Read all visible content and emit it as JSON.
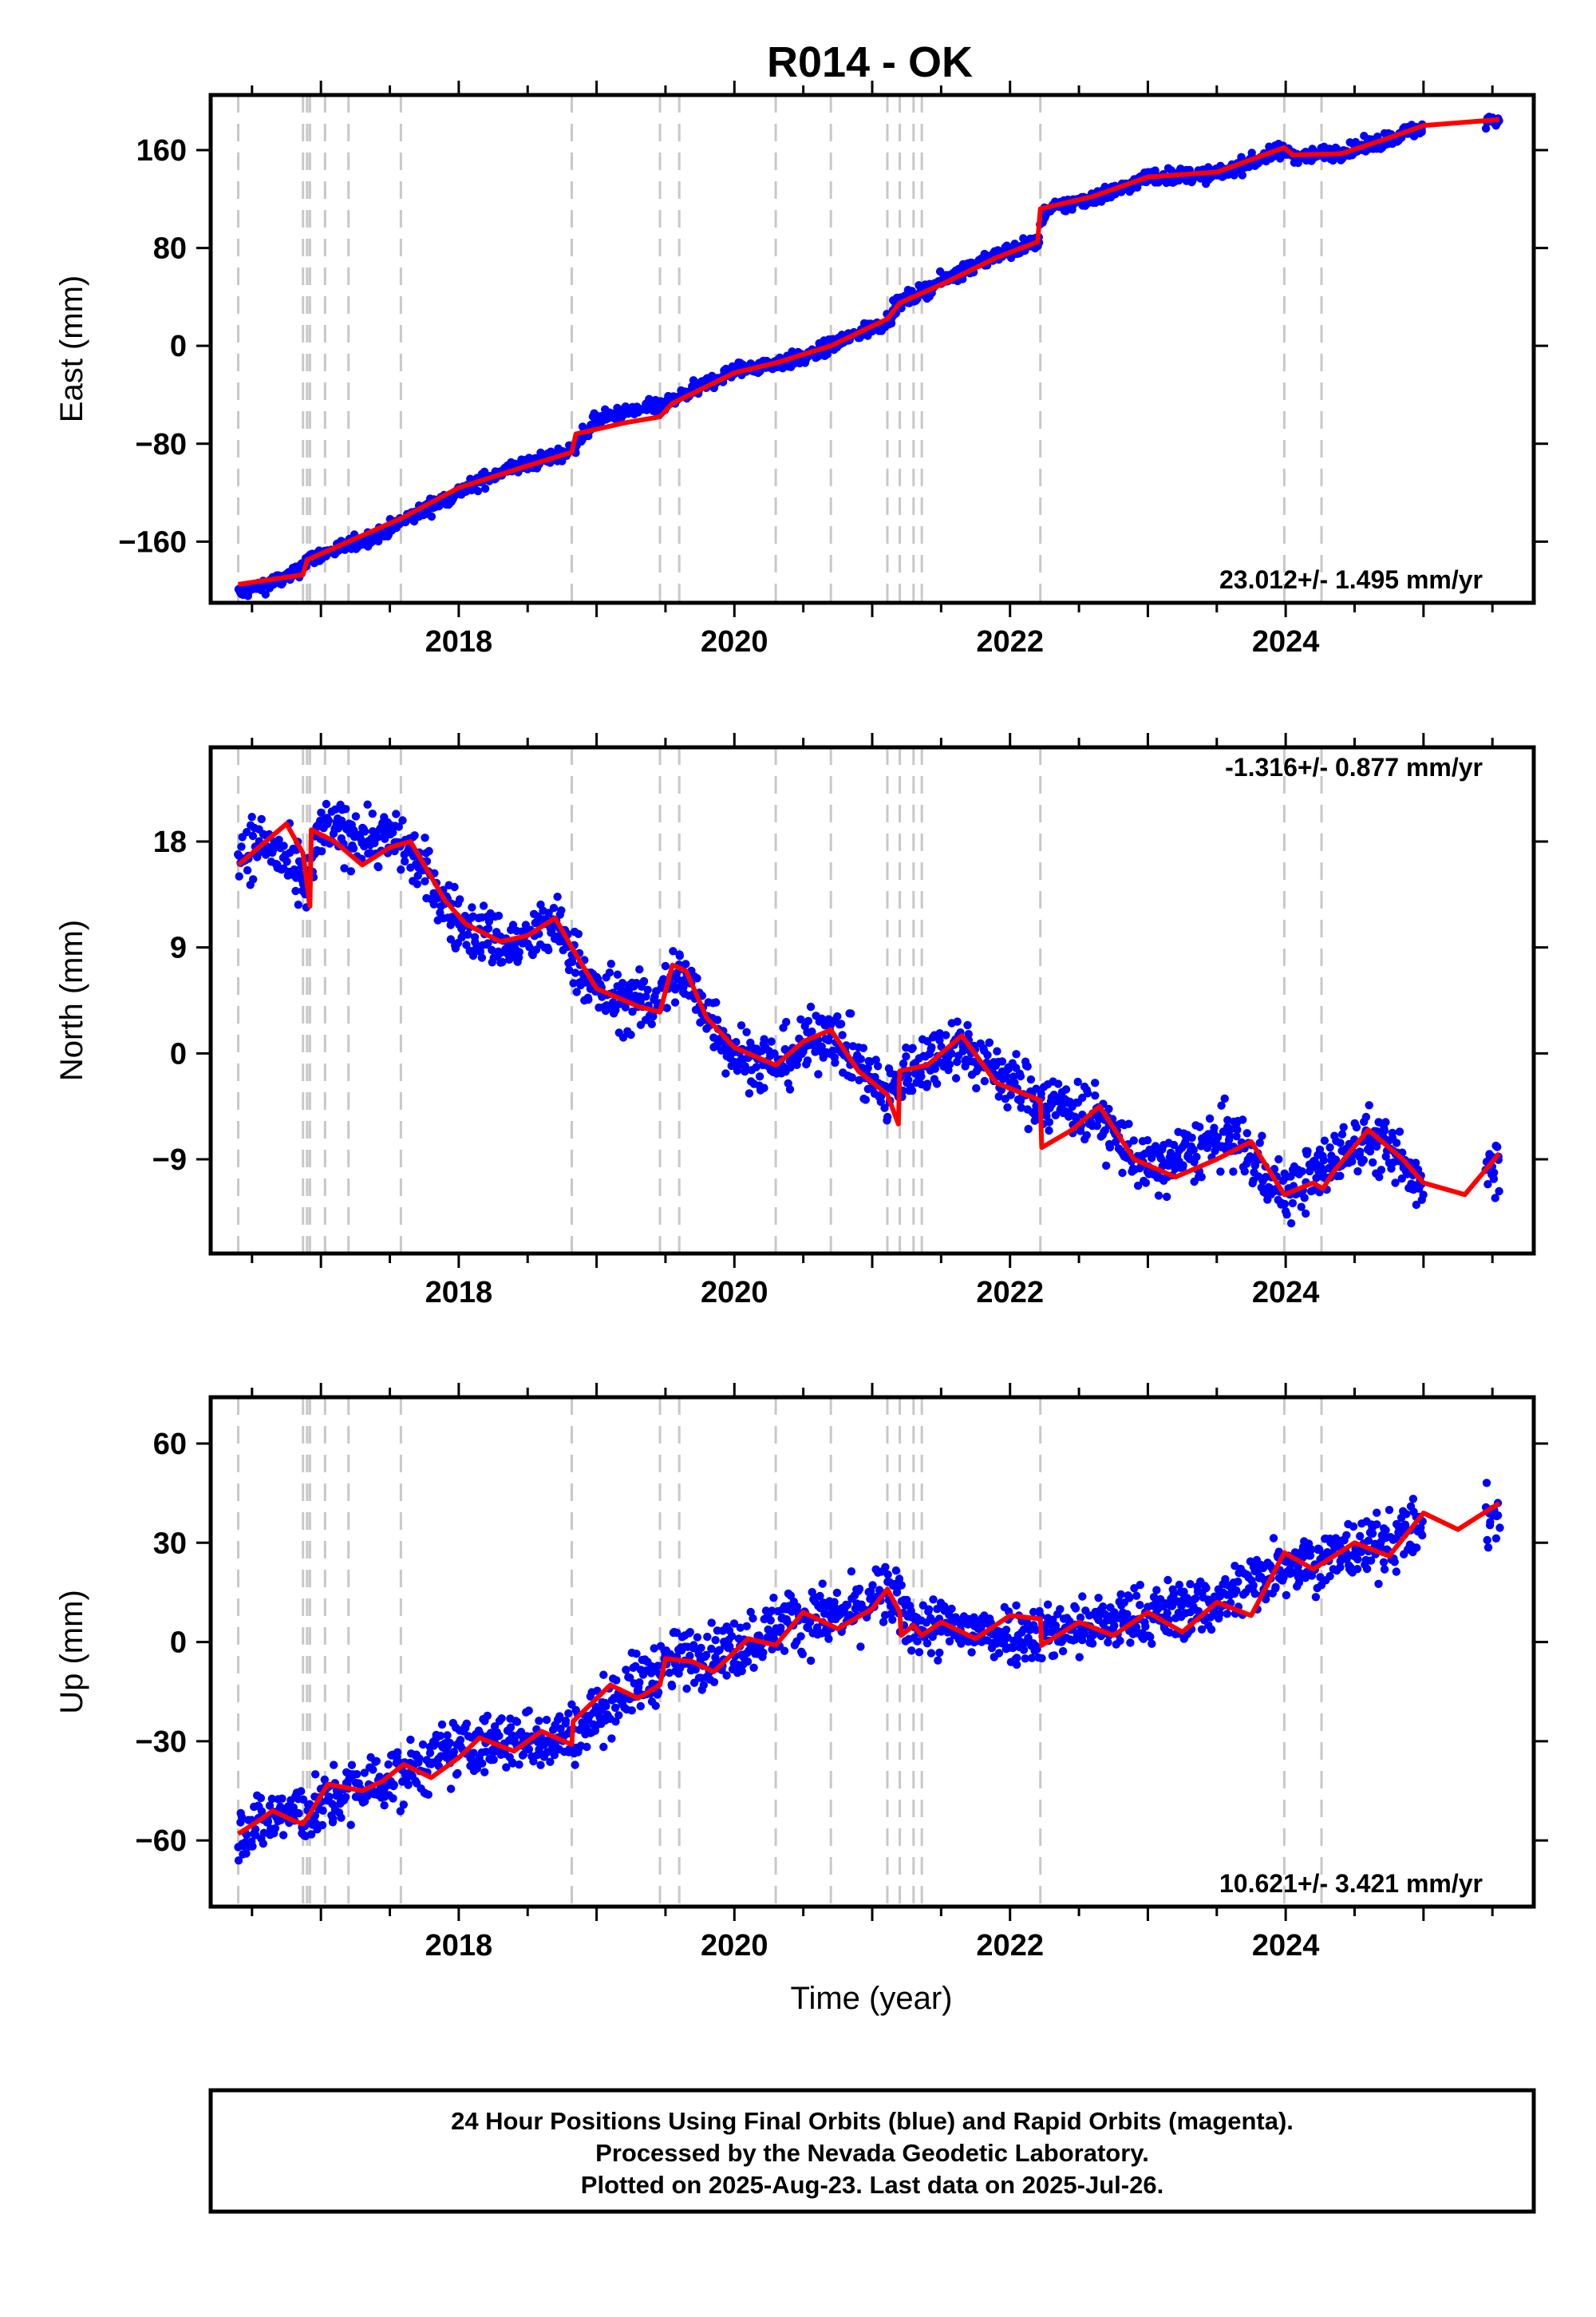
{
  "title": "R014 - OK",
  "xlabel": "Time (year)",
  "footer": {
    "line1": "24 Hour Positions Using Final Orbits (blue) and Rapid Orbits (magenta).",
    "line2": "Processed by the Nevada Geodetic Laboratory.",
    "line3": "Plotted on 2025-Aug-23. Last data on 2025-Jul-26."
  },
  "colors": {
    "data": "#0000ff",
    "model": "#ff0000",
    "event_lines": "#c8c8c8",
    "frame": "#000000"
  },
  "chart_data": [
    {
      "type": "scatter",
      "component": "east",
      "ylabel": "East (mm)",
      "xlim": [
        2016.2,
        2025.8
      ],
      "ylim": [
        -210,
        205
      ],
      "yticks": [
        -160,
        -80,
        0,
        80,
        160
      ],
      "xticks": [
        2018,
        2020,
        2022,
        2024
      ],
      "rate_text": "23.012+/- 1.495 mm/yr",
      "rate_position": "bottom-right",
      "event_lines": [
        2016.4,
        2016.87,
        2016.9,
        2016.92,
        2017.03,
        2017.2,
        2017.58,
        2018.82,
        2019.46,
        2019.6,
        2020.3,
        2020.7,
        2021.11,
        2021.2,
        2021.3,
        2021.36,
        2022.22,
        2023.99,
        2024.26
      ],
      "series": [
        {
          "name": "data",
          "style": "dots",
          "approx_points": [
            [
              2016.4,
              -202
            ],
            [
              2016.8,
              -188
            ],
            [
              2016.9,
              -175
            ],
            [
              2017.4,
              -155
            ],
            [
              2017.9,
              -125
            ],
            [
              2018.3,
              -103
            ],
            [
              2018.8,
              -87
            ],
            [
              2019.0,
              -60
            ],
            [
              2019.5,
              -48
            ],
            [
              2020.0,
              -20
            ],
            [
              2020.5,
              -10
            ],
            [
              2021.1,
              20
            ],
            [
              2021.2,
              35
            ],
            [
              2021.8,
              70
            ],
            [
              2022.2,
              85
            ],
            [
              2022.25,
              110
            ],
            [
              2022.8,
              128
            ],
            [
              2023.0,
              138
            ],
            [
              2023.5,
              140
            ],
            [
              2023.98,
              160
            ],
            [
              2024.1,
              155
            ],
            [
              2024.5,
              160
            ],
            [
              2024.9,
              175
            ],
            [
              2025.2,
              180
            ],
            [
              2025.55,
              185
            ]
          ],
          "scatter": 6
        },
        {
          "name": "model",
          "style": "line",
          "points": [
            [
              2016.4,
              -195
            ],
            [
              2016.87,
              -187
            ],
            [
              2016.9,
              -175
            ],
            [
              2017.6,
              -140
            ],
            [
              2018.0,
              -116
            ],
            [
              2018.5,
              -98
            ],
            [
              2018.82,
              -87
            ],
            [
              2018.85,
              -72
            ],
            [
              2019.2,
              -63
            ],
            [
              2019.46,
              -58
            ],
            [
              2019.55,
              -47
            ],
            [
              2020.0,
              -22
            ],
            [
              2020.3,
              -14
            ],
            [
              2020.7,
              0
            ],
            [
              2021.11,
              22
            ],
            [
              2021.2,
              35
            ],
            [
              2021.5,
              50
            ],
            [
              2021.9,
              72
            ],
            [
              2022.2,
              85
            ],
            [
              2022.22,
              112
            ],
            [
              2022.6,
              122
            ],
            [
              2022.8,
              130
            ],
            [
              2023.0,
              138
            ],
            [
              2023.5,
              142
            ],
            [
              2023.99,
              162
            ],
            [
              2024.05,
              156
            ],
            [
              2024.4,
              157
            ],
            [
              2024.7,
              168
            ],
            [
              2025.0,
              180
            ],
            [
              2025.55,
              185
            ]
          ]
        }
      ]
    },
    {
      "type": "scatter",
      "component": "north",
      "ylabel": "North (mm)",
      "xlim": [
        2016.2,
        2025.8
      ],
      "ylim": [
        -17,
        26
      ],
      "yticks": [
        -9,
        0,
        9,
        18
      ],
      "xticks": [
        2018,
        2020,
        2022,
        2024
      ],
      "rate_text": "-1.316+/- 0.877 mm/yr",
      "rate_position": "top-right",
      "event_lines": [
        2016.4,
        2016.87,
        2016.9,
        2016.92,
        2017.03,
        2017.2,
        2017.58,
        2018.82,
        2019.46,
        2019.6,
        2020.3,
        2020.7,
        2021.11,
        2021.2,
        2021.3,
        2021.36,
        2022.22,
        2023.99,
        2024.26
      ],
      "series": [
        {
          "name": "data",
          "style": "dots",
          "approx_points": [
            [
              2016.4,
              17
            ],
            [
              2016.6,
              18
            ],
            [
              2016.9,
              14
            ],
            [
              2017.0,
              19
            ],
            [
              2017.6,
              18
            ],
            [
              2018.0,
              11
            ],
            [
              2018.4,
              9
            ],
            [
              2018.7,
              11
            ],
            [
              2019.0,
              5
            ],
            [
              2019.4,
              4
            ],
            [
              2019.6,
              7
            ],
            [
              2020.0,
              0
            ],
            [
              2020.3,
              -1
            ],
            [
              2020.7,
              2
            ],
            [
              2021.11,
              -4
            ],
            [
              2021.2,
              -2
            ],
            [
              2021.6,
              1
            ],
            [
              2022.2,
              -4
            ],
            [
              2022.6,
              -5
            ],
            [
              2023.0,
              -10
            ],
            [
              2023.6,
              -7
            ],
            [
              2024.0,
              -12
            ],
            [
              2024.6,
              -7
            ],
            [
              2025.0,
              -11
            ],
            [
              2025.55,
              -9
            ]
          ],
          "scatter": 2.5
        },
        {
          "name": "model",
          "style": "line",
          "points": [
            [
              2016.4,
              16
            ],
            [
              2016.55,
              17.5
            ],
            [
              2016.75,
              19.5
            ],
            [
              2016.87,
              17
            ],
            [
              2016.92,
              12.5
            ],
            [
              2016.93,
              19
            ],
            [
              2017.1,
              18
            ],
            [
              2017.3,
              16
            ],
            [
              2017.5,
              17.5
            ],
            [
              2017.65,
              18
            ],
            [
              2017.9,
              13
            ],
            [
              2018.05,
              11
            ],
            [
              2018.3,
              9.5
            ],
            [
              2018.5,
              10
            ],
            [
              2018.7,
              11.5
            ],
            [
              2018.82,
              9
            ],
            [
              2019.0,
              5.5
            ],
            [
              2019.3,
              4
            ],
            [
              2019.46,
              3.5
            ],
            [
              2019.55,
              7.5
            ],
            [
              2019.65,
              7
            ],
            [
              2019.8,
              3
            ],
            [
              2020.0,
              0.5
            ],
            [
              2020.3,
              -1
            ],
            [
              2020.5,
              1
            ],
            [
              2020.7,
              2
            ],
            [
              2020.9,
              -1.5
            ],
            [
              2021.11,
              -3.5
            ],
            [
              2021.19,
              -6
            ],
            [
              2021.2,
              -1.5
            ],
            [
              2021.4,
              -1
            ],
            [
              2021.65,
              1.5
            ],
            [
              2021.9,
              -2.5
            ],
            [
              2022.22,
              -4
            ],
            [
              2022.23,
              -8
            ],
            [
              2022.45,
              -6.5
            ],
            [
              2022.65,
              -4.5
            ],
            [
              2022.9,
              -9
            ],
            [
              2023.2,
              -10.5
            ],
            [
              2023.5,
              -9
            ],
            [
              2023.75,
              -7.5
            ],
            [
              2023.99,
              -12
            ],
            [
              2024.2,
              -11
            ],
            [
              2024.27,
              -11.5
            ],
            [
              2024.35,
              -10
            ],
            [
              2024.6,
              -6.5
            ],
            [
              2024.85,
              -9
            ],
            [
              2025.0,
              -11
            ],
            [
              2025.3,
              -12
            ],
            [
              2025.55,
              -8.5
            ]
          ]
        }
      ]
    },
    {
      "type": "scatter",
      "component": "up",
      "ylabel": "Up (mm)",
      "xlim": [
        2016.2,
        2025.8
      ],
      "ylim": [
        -80,
        74
      ],
      "yticks": [
        -60,
        -30,
        0,
        30,
        60
      ],
      "xticks": [
        2018,
        2020,
        2022,
        2024
      ],
      "rate_text": "10.621+/- 3.421 mm/yr",
      "rate_position": "bottom-right",
      "event_lines": [
        2016.4,
        2016.87,
        2016.9,
        2016.92,
        2017.03,
        2017.2,
        2017.58,
        2018.82,
        2019.46,
        2019.6,
        2020.3,
        2020.7,
        2021.11,
        2021.2,
        2021.3,
        2021.36,
        2022.22,
        2023.99,
        2024.26
      ],
      "series": [
        {
          "name": "data",
          "style": "dots",
          "approx_points": [
            [
              2016.4,
              -58
            ],
            [
              2016.7,
              -52
            ],
            [
              2016.9,
              -52
            ],
            [
              2017.2,
              -45
            ],
            [
              2017.6,
              -40
            ],
            [
              2018.0,
              -32
            ],
            [
              2018.4,
              -30
            ],
            [
              2018.82,
              -28
            ],
            [
              2019.2,
              -15
            ],
            [
              2019.6,
              -5
            ],
            [
              2020.0,
              -2
            ],
            [
              2020.4,
              7
            ],
            [
              2020.8,
              8
            ],
            [
              2021.11,
              15
            ],
            [
              2021.3,
              5
            ],
            [
              2021.8,
              3
            ],
            [
              2022.2,
              3
            ],
            [
              2022.6,
              5
            ],
            [
              2023.0,
              8
            ],
            [
              2023.5,
              12
            ],
            [
              2023.99,
              24
            ],
            [
              2024.3,
              25
            ],
            [
              2024.7,
              30
            ],
            [
              2025.0,
              35
            ],
            [
              2025.55,
              38
            ]
          ],
          "scatter": 9
        },
        {
          "name": "model",
          "style": "line",
          "points": [
            [
              2016.4,
              -58
            ],
            [
              2016.55,
              -54
            ],
            [
              2016.65,
              -51
            ],
            [
              2016.8,
              -54
            ],
            [
              2016.87,
              -55
            ],
            [
              2016.92,
              -52
            ],
            [
              2017.05,
              -43
            ],
            [
              2017.3,
              -45
            ],
            [
              2017.45,
              -42
            ],
            [
              2017.6,
              -37
            ],
            [
              2017.8,
              -41
            ],
            [
              2018.0,
              -35
            ],
            [
              2018.15,
              -29
            ],
            [
              2018.4,
              -33
            ],
            [
              2018.6,
              -27
            ],
            [
              2018.82,
              -31
            ],
            [
              2018.83,
              -24
            ],
            [
              2019.1,
              -13
            ],
            [
              2019.3,
              -17
            ],
            [
              2019.46,
              -13
            ],
            [
              2019.5,
              -5
            ],
            [
              2019.7,
              -6
            ],
            [
              2019.85,
              -9
            ],
            [
              2020.1,
              1
            ],
            [
              2020.3,
              -1
            ],
            [
              2020.5,
              9
            ],
            [
              2020.75,
              4
            ],
            [
              2021.0,
              10
            ],
            [
              2021.11,
              16
            ],
            [
              2021.2,
              9
            ],
            [
              2021.21,
              2
            ],
            [
              2021.3,
              5
            ],
            [
              2021.36,
              2
            ],
            [
              2021.5,
              6
            ],
            [
              2021.75,
              1
            ],
            [
              2022.0,
              8
            ],
            [
              2022.22,
              7
            ],
            [
              2022.23,
              -1
            ],
            [
              2022.5,
              6
            ],
            [
              2022.75,
              2
            ],
            [
              2023.0,
              9
            ],
            [
              2023.25,
              3
            ],
            [
              2023.5,
              12
            ],
            [
              2023.75,
              8
            ],
            [
              2023.99,
              27
            ],
            [
              2024.2,
              22
            ],
            [
              2024.5,
              30
            ],
            [
              2024.75,
              26
            ],
            [
              2025.0,
              39
            ],
            [
              2025.25,
              34
            ],
            [
              2025.55,
              42
            ]
          ]
        }
      ]
    }
  ]
}
